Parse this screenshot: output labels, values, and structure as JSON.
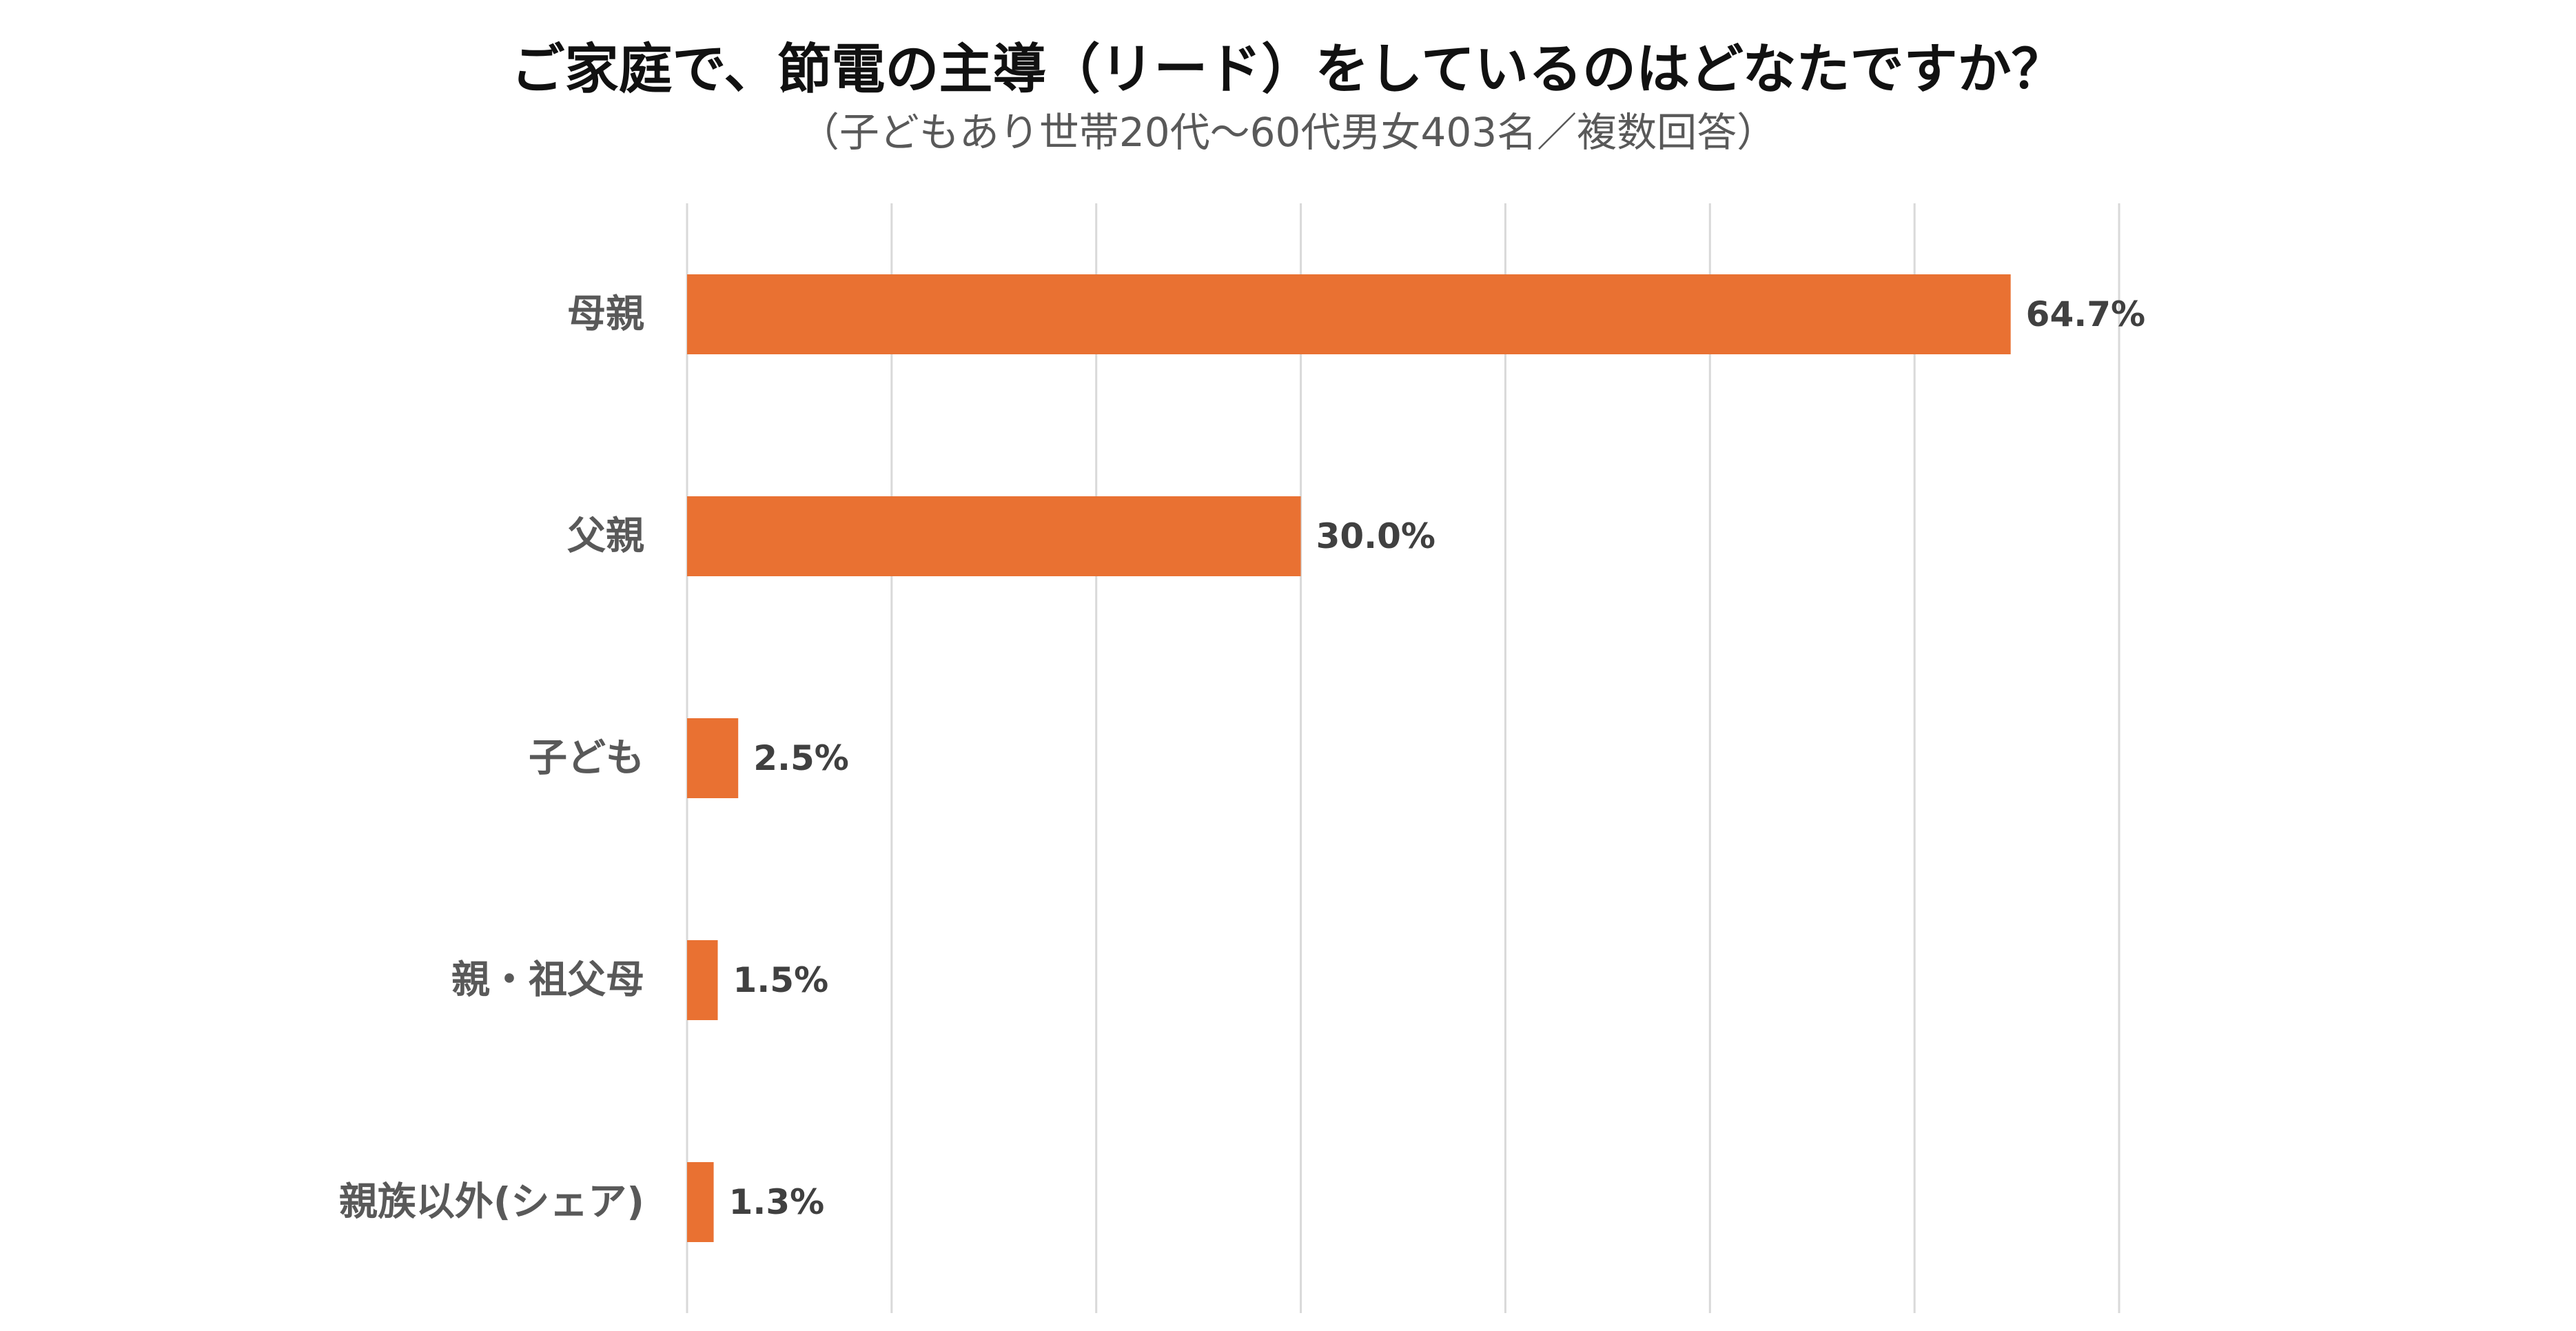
{
  "chart_data": {
    "type": "bar",
    "orientation": "horizontal",
    "title": "ご家庭で、節電の主導（リード）をしているのはどなたですか？",
    "subtitle": "（子どもあり世帯20代～60代男女403名／複数回答）",
    "categories": [
      "母親",
      "父親",
      "子ども",
      "親・祖父母",
      "親族以外(シェア)"
    ],
    "values": [
      64.7,
      30.0,
      2.5,
      1.5,
      1.3
    ],
    "value_labels": [
      "64.7%",
      "30.0%",
      "2.5%",
      "1.5%",
      "1.3%"
    ],
    "xlim": [
      0,
      70
    ],
    "grid": true,
    "legend": "none",
    "xlabel": "",
    "ylabel": ""
  },
  "colors": {
    "bar": "#E97132",
    "grid": "#D9D9D9",
    "axis": "#D9D9D9"
  }
}
